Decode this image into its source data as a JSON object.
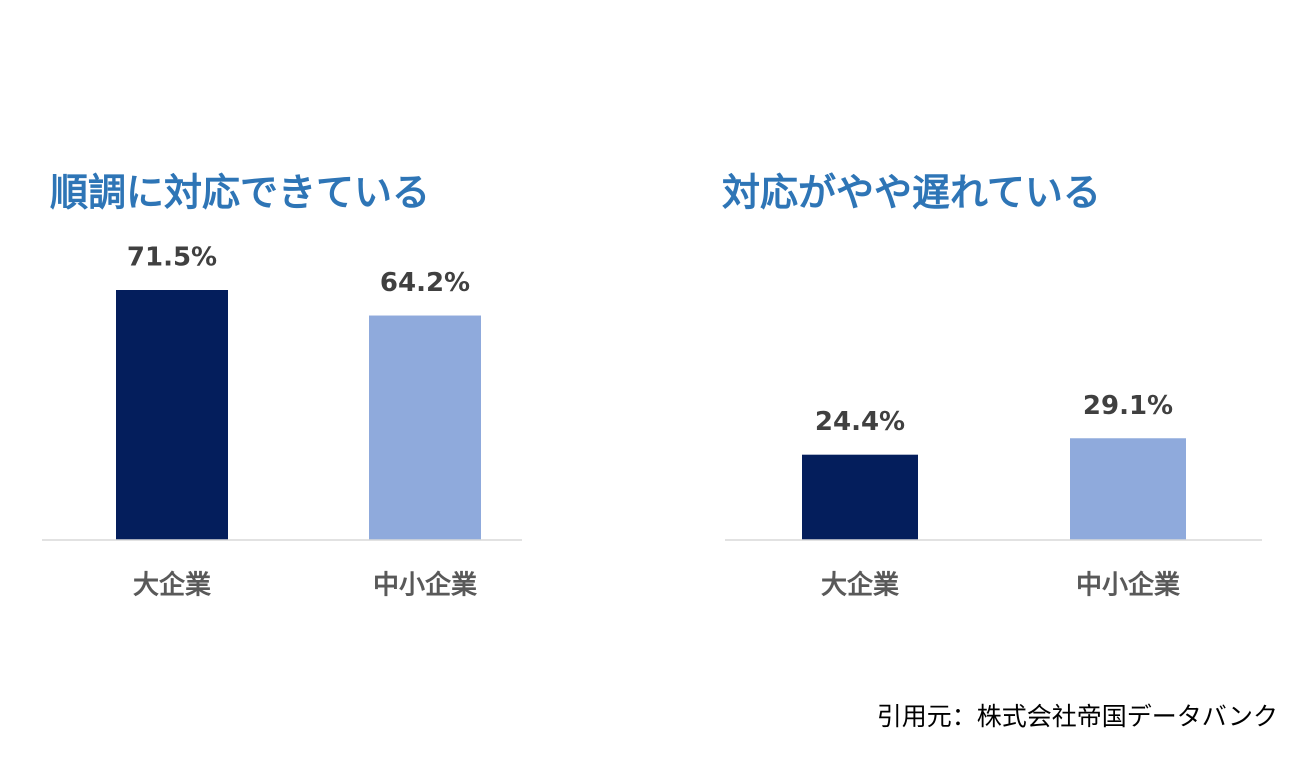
{
  "chart_data": [
    {
      "type": "bar",
      "title": "順調に対応できている",
      "categories": [
        "大企業",
        "中小企業"
      ],
      "values": [
        71.5,
        64.2
      ],
      "value_labels": [
        "71.5%",
        "64.2%"
      ],
      "colors": [
        "#041e5c",
        "#8faadc"
      ]
    },
    {
      "type": "bar",
      "title": "対応がやや遅れている",
      "categories": [
        "大企業",
        "中小企業"
      ],
      "values": [
        24.4,
        29.1
      ],
      "value_labels": [
        "24.4%",
        "29.1%"
      ],
      "colors": [
        "#041e5c",
        "#8faadc"
      ]
    }
  ],
  "source": "引用元：株式会社帝国データバンク"
}
